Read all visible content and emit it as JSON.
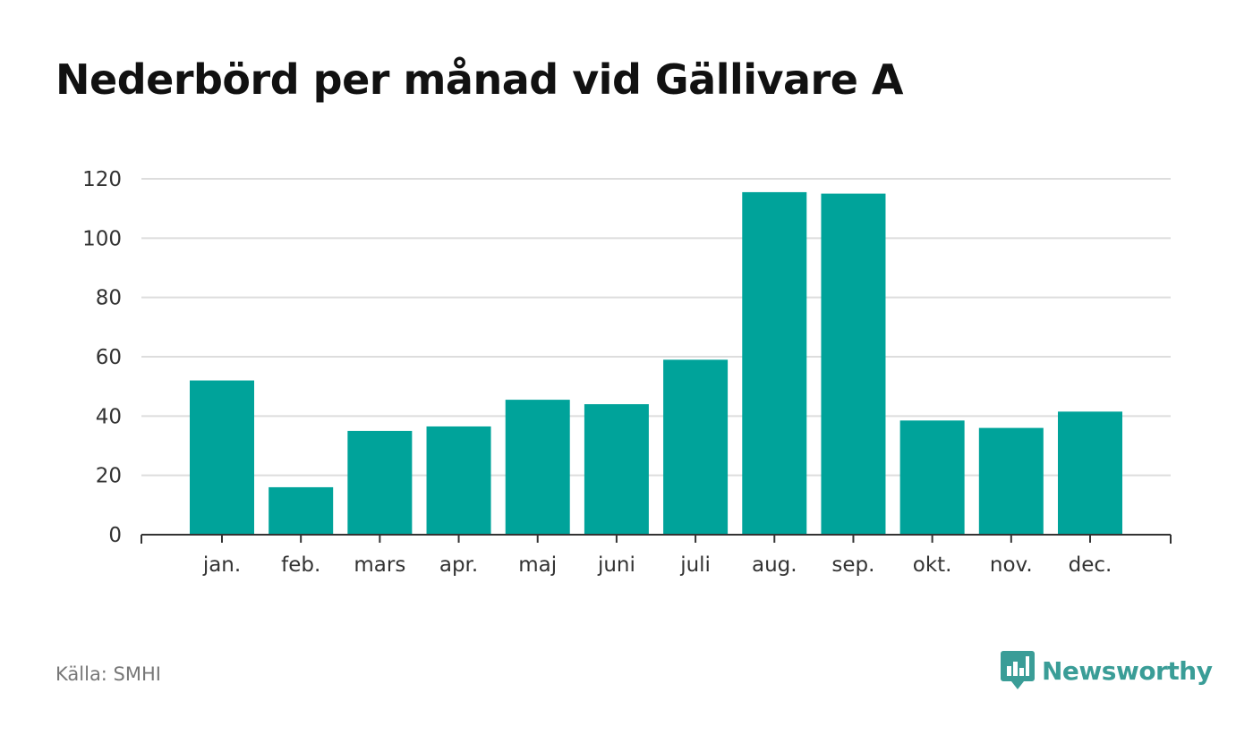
{
  "header": {
    "title": "Nederbörd per månad vid Gällivare A"
  },
  "footer": {
    "source": "Källa: SMHI",
    "brand": "Newsworthy"
  },
  "colors": {
    "bar": "#00a39a",
    "grid": "#dddddd",
    "axis": "#333333",
    "brand": "#3a9d97"
  },
  "icons": {
    "brand": "bar-chart-speech-bubble-icon"
  },
  "chart_data": {
    "type": "bar",
    "categories": [
      "jan.",
      "feb.",
      "mars",
      "apr.",
      "maj",
      "juni",
      "juli",
      "aug.",
      "sep.",
      "okt.",
      "nov.",
      "dec."
    ],
    "values": [
      52,
      16,
      35,
      36.5,
      45.5,
      44,
      59,
      115.5,
      115,
      38.5,
      36,
      41.5
    ],
    "ylim": [
      0,
      120
    ],
    "yticks": [
      0,
      20,
      40,
      60,
      80,
      100,
      120
    ],
    "grid": true,
    "legend": "none"
  }
}
